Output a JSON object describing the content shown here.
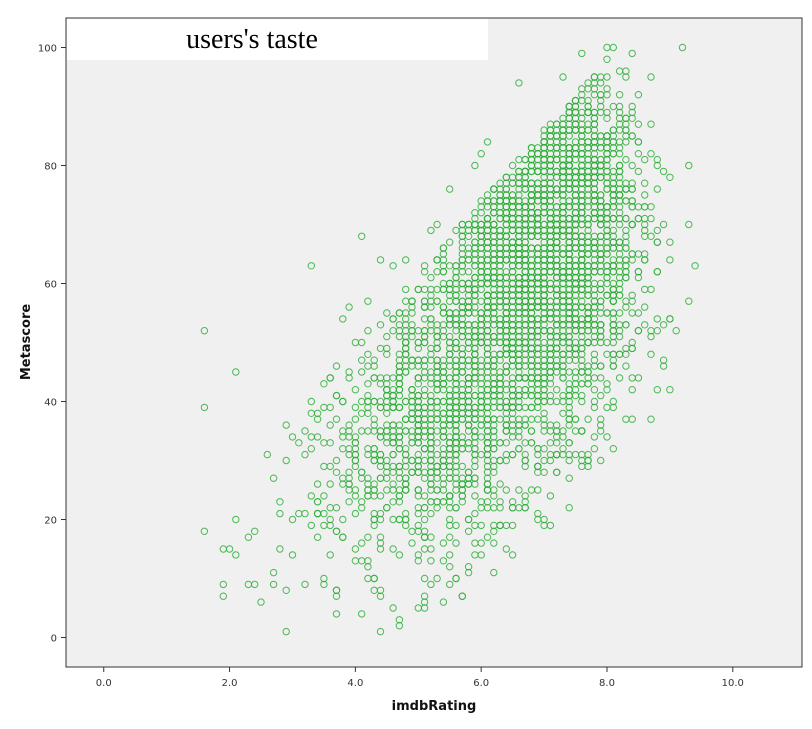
{
  "chart_data": {
    "type": "scatter",
    "title": "users's taste",
    "xlabel": "imdbRating",
    "ylabel": "Metascore",
    "xlim": [
      -0.6,
      11.1
    ],
    "ylim": [
      -5,
      105
    ],
    "xticks": [
      0,
      2,
      4,
      6,
      8,
      10
    ],
    "xtick_labels": [
      "0.0",
      "2.0",
      "4.0",
      "6.0",
      "8.0",
      "10.0"
    ],
    "yticks": [
      0,
      20,
      40,
      60,
      80,
      100
    ],
    "ytick_labels": [
      "0",
      "20",
      "40",
      "60",
      "80",
      "100"
    ],
    "grid": false,
    "marker_color": "#2fae3a",
    "plot_background": "#f0f0f0",
    "points": [
      [
        1.6,
        52
      ],
      [
        1.6,
        39
      ],
      [
        1.6,
        18
      ],
      [
        2.1,
        45
      ],
      [
        1.9,
        15
      ],
      [
        1.9,
        9
      ],
      [
        1.9,
        7
      ],
      [
        2.0,
        15
      ],
      [
        2.1,
        14
      ],
      [
        2.1,
        20
      ],
      [
        2.3,
        9
      ],
      [
        2.4,
        9
      ],
      [
        2.3,
        17
      ],
      [
        2.4,
        18
      ],
      [
        2.5,
        6
      ],
      [
        2.6,
        31
      ],
      [
        2.7,
        11
      ],
      [
        2.7,
        9
      ],
      [
        2.8,
        23
      ],
      [
        2.8,
        21
      ],
      [
        2.9,
        1
      ],
      [
        3.0,
        14
      ],
      [
        3.0,
        20
      ],
      [
        3.1,
        21
      ],
      [
        3.2,
        9
      ],
      [
        3.2,
        31
      ],
      [
        3.3,
        63
      ],
      [
        3.3,
        40
      ],
      [
        3.3,
        32
      ],
      [
        3.4,
        37
      ],
      [
        3.5,
        10
      ],
      [
        3.5,
        9
      ],
      [
        3.6,
        26
      ],
      [
        3.7,
        41
      ],
      [
        3.8,
        54
      ],
      [
        3.9,
        44
      ],
      [
        3.9,
        56
      ],
      [
        4.0,
        50
      ],
      [
        4.0,
        25
      ],
      [
        4.0,
        15
      ],
      [
        4.1,
        68
      ],
      [
        4.1,
        38
      ],
      [
        4.2,
        57
      ],
      [
        4.3,
        44
      ],
      [
        4.4,
        64
      ],
      [
        4.4,
        1
      ],
      [
        4.5,
        22
      ],
      [
        4.6,
        5
      ],
      [
        4.6,
        63
      ],
      [
        4.7,
        43
      ],
      [
        4.8,
        64
      ],
      [
        4.9,
        28
      ],
      [
        5.0,
        24
      ],
      [
        5.0,
        59
      ],
      [
        5.1,
        7
      ],
      [
        5.1,
        47
      ],
      [
        5.2,
        69
      ],
      [
        5.3,
        70
      ],
      [
        5.4,
        6
      ],
      [
        5.5,
        76
      ],
      [
        5.6,
        44
      ],
      [
        5.7,
        7
      ],
      [
        5.8,
        12
      ],
      [
        5.9,
        80
      ],
      [
        6.0,
        82
      ],
      [
        6.1,
        84
      ],
      [
        6.2,
        16
      ],
      [
        6.3,
        19
      ],
      [
        6.5,
        19
      ],
      [
        6.6,
        94
      ],
      [
        7.1,
        19
      ],
      [
        7.3,
        95
      ],
      [
        7.4,
        22
      ],
      [
        7.7,
        30
      ],
      [
        7.9,
        36
      ],
      [
        8.0,
        100
      ],
      [
        8.1,
        100
      ],
      [
        8.4,
        37
      ],
      [
        8.7,
        51
      ],
      [
        8.8,
        67
      ],
      [
        9.0,
        67
      ],
      [
        9.0,
        78
      ],
      [
        9.2,
        100
      ],
      [
        9.3,
        80
      ],
      [
        9.4,
        63
      ],
      [
        8.5,
        92
      ],
      [
        8.6,
        81
      ],
      [
        8.9,
        79
      ],
      [
        8.2,
        96
      ],
      [
        7.6,
        99
      ]
    ],
    "point_clouds": [
      {
        "center": [
          6.6,
          58
        ],
        "spread": [
          0.85,
          15
        ],
        "count": 1900
      },
      {
        "center": [
          7.3,
          70
        ],
        "spread": [
          0.6,
          13
        ],
        "count": 900
      },
      {
        "center": [
          5.3,
          36
        ],
        "spread": [
          0.7,
          11
        ],
        "count": 650
      },
      {
        "center": [
          4.3,
          26
        ],
        "spread": [
          0.7,
          10
        ],
        "count": 180
      },
      {
        "center": [
          7.6,
          84
        ],
        "spread": [
          0.45,
          8
        ],
        "count": 320
      }
    ]
  }
}
